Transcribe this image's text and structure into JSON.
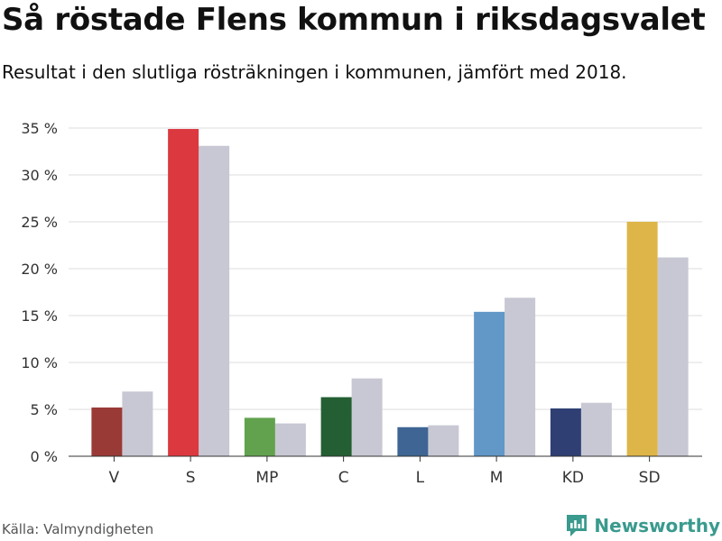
{
  "header": {
    "title": "Så röstade Flens kommun i riksdagsvalet",
    "subtitle": "Resultat i den slutliga rösträkningen i kommunen, jämfört med 2018."
  },
  "footer": {
    "source": "Källa: Valmyndigheten",
    "brand": "Newsworthy",
    "brand_icon": "newsworthy-logo-icon",
    "brand_color": "#3a9a8e"
  },
  "chart_data": {
    "type": "bar",
    "categories": [
      "V",
      "S",
      "MP",
      "C",
      "L",
      "M",
      "KD",
      "SD"
    ],
    "series": [
      {
        "values": [
          5.2,
          34.9,
          4.1,
          6.3,
          3.1,
          15.4,
          5.1,
          25.0
        ],
        "colors": [
          "#9a3a36",
          "#dc3840",
          "#62a24e",
          "#235f32",
          "#3e6593",
          "#6198c8",
          "#2f3f74",
          "#deb548"
        ]
      },
      {
        "values": [
          6.9,
          33.1,
          3.5,
          8.3,
          3.3,
          16.9,
          5.7,
          21.2
        ],
        "color": "#c8c8d4"
      }
    ],
    "yticks": [
      "0 %",
      "5 %",
      "10 %",
      "15 %",
      "20 %",
      "25 %",
      "30 %",
      "35 %"
    ],
    "ylim": [
      0,
      35
    ],
    "grid": true,
    "legend": "none"
  }
}
